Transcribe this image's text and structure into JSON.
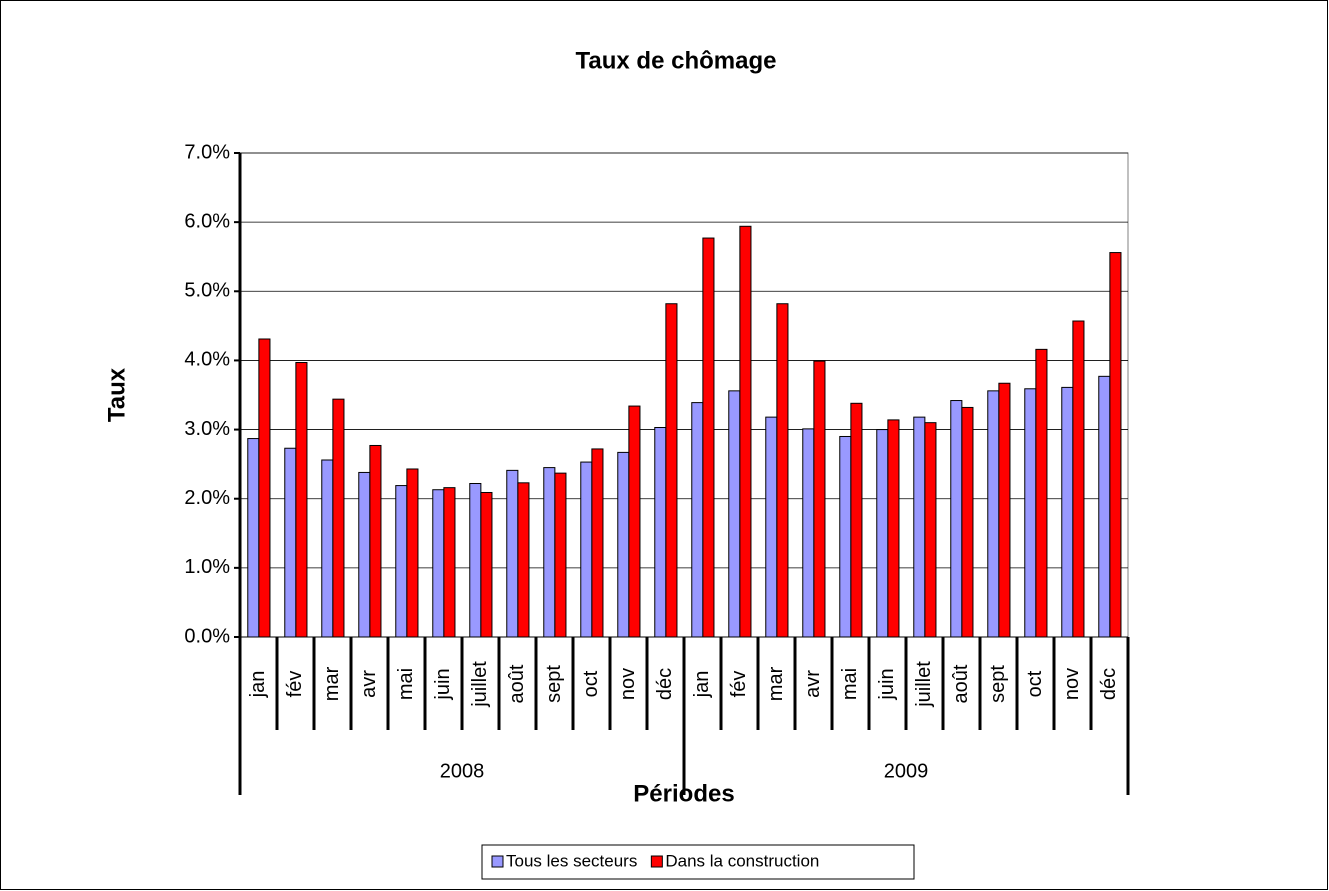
{
  "chart_data": {
    "type": "bar",
    "title": "Taux de chômage",
    "x_label": "Périodes",
    "y_label": "Taux",
    "categories": [
      "jan",
      "fév",
      "mar",
      "avr",
      "mai",
      "juin",
      "juillet",
      "août",
      "sept",
      "oct",
      "nov",
      "déc",
      "jan",
      "fév",
      "mar",
      "avr",
      "mai",
      "juin",
      "juillet",
      "août",
      "sept",
      "oct",
      "nov",
      "déc"
    ],
    "category_groups": [
      "2008",
      "2009"
    ],
    "series": [
      {
        "name": "Tous les secteurs",
        "color": "#9999ff",
        "values": [
          2.87,
          2.73,
          2.56,
          2.38,
          2.19,
          2.13,
          2.22,
          2.41,
          2.45,
          2.53,
          2.67,
          3.03,
          3.39,
          3.56,
          3.18,
          3.01,
          2.9,
          3.0,
          3.18,
          3.42,
          3.56,
          3.59,
          3.61,
          3.77
        ]
      },
      {
        "name": "Dans la construction",
        "color": "#ff0000",
        "values": [
          4.31,
          3.97,
          3.44,
          2.77,
          2.43,
          2.16,
          2.09,
          2.23,
          2.37,
          2.72,
          3.34,
          4.82,
          5.77,
          5.94,
          4.82,
          3.99,
          3.38,
          3.14,
          3.1,
          3.32,
          3.67,
          4.16,
          4.57,
          5.56
        ]
      }
    ],
    "ylim": [
      0,
      7
    ],
    "yticks": [
      {
        "value": 0,
        "label": "0.0%"
      },
      {
        "value": 1,
        "label": "1.0%"
      },
      {
        "value": 2,
        "label": "2.0%"
      },
      {
        "value": 3,
        "label": "3.0%"
      },
      {
        "value": 4,
        "label": "4.0%"
      },
      {
        "value": 5,
        "label": "5.0%"
      },
      {
        "value": 6,
        "label": "6.0%"
      },
      {
        "value": 7,
        "label": "7.0%"
      }
    ],
    "grid": true,
    "legend": "bottom"
  }
}
